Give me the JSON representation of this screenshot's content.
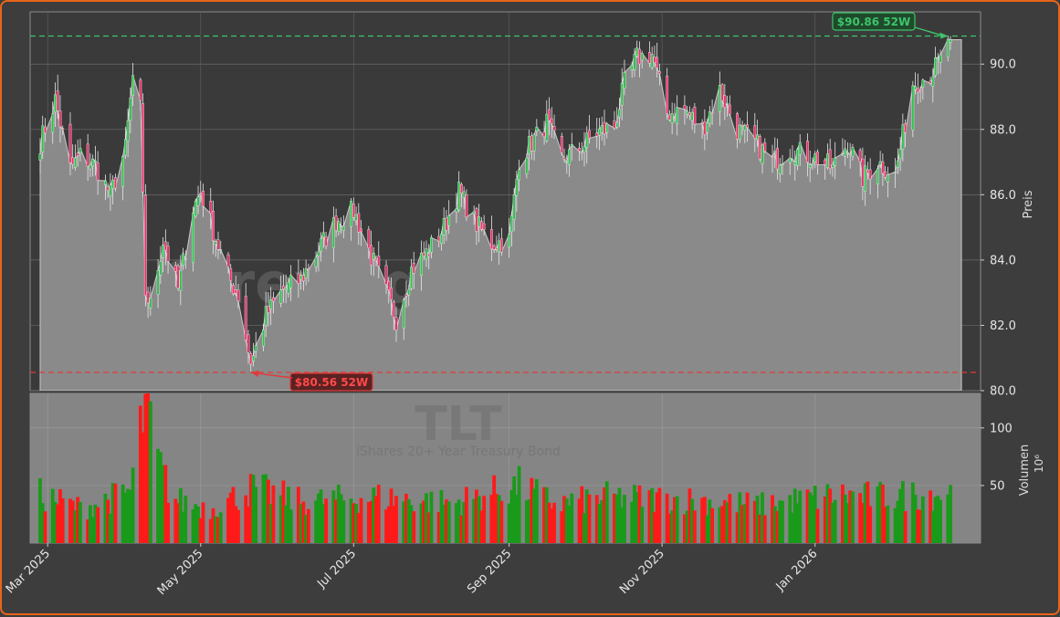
{
  "chart_data": {
    "type": "candlestick",
    "ticker": "TLT",
    "subtitle": "iShares 20+ Year Treasury Bond",
    "watermark": "forexsignale.trade",
    "ylabel": "Preis",
    "volume_label": "Volumen",
    "volume_unit": "10⁶",
    "ylim": [
      80.0,
      91.6
    ],
    "volume_ylim": [
      0,
      130
    ],
    "price_ticks": [
      "80.0",
      "82.0",
      "84.0",
      "86.0",
      "88.0",
      "90.0"
    ],
    "price_tick_values": [
      80,
      82,
      84,
      86,
      88,
      90
    ],
    "volume_ticks": [
      "50",
      "100"
    ],
    "volume_tick_values": [
      50,
      100
    ],
    "x_tick_labels": [
      "Mar 2025",
      "May 2025",
      "Jul 2025",
      "Sep 2025",
      "Nov 2025",
      "Jan 2026"
    ],
    "x_tick_dates": [
      "2025-03-01",
      "2025-05-01",
      "2025-07-01",
      "2025-09-01",
      "2025-11-01",
      "2026-01-01"
    ],
    "date_range": [
      "2025-02-26",
      "2026-02-24"
    ],
    "annotations": {
      "high": {
        "label": "$90.86 52W",
        "value": 90.86,
        "date": "2026-02-23"
      },
      "low": {
        "label": "$80.56 52W",
        "value": 80.56,
        "date": "2025-05-21"
      }
    },
    "close_anchors": [
      [
        "2025-02-26",
        87.6
      ],
      [
        "2025-03-04",
        88.9
      ],
      [
        "2025-03-10",
        86.8
      ],
      [
        "2025-03-14",
        87.2
      ],
      [
        "2025-03-20",
        86.9
      ],
      [
        "2025-03-26",
        86.0
      ],
      [
        "2025-04-01",
        87.4
      ],
      [
        "2025-04-04",
        89.6
      ],
      [
        "2025-04-07",
        88.6
      ],
      [
        "2025-04-09",
        83.0
      ],
      [
        "2025-04-11",
        82.6
      ],
      [
        "2025-04-16",
        84.6
      ],
      [
        "2025-04-22",
        83.1
      ],
      [
        "2025-04-28",
        85.6
      ],
      [
        "2025-05-01",
        86.1
      ],
      [
        "2025-05-06",
        84.9
      ],
      [
        "2025-05-12",
        83.5
      ],
      [
        "2025-05-16",
        82.9
      ],
      [
        "2025-05-21",
        80.8
      ],
      [
        "2025-05-27",
        82.3
      ],
      [
        "2025-06-03",
        83.1
      ],
      [
        "2025-06-10",
        83.4
      ],
      [
        "2025-06-16",
        84.2
      ],
      [
        "2025-06-24",
        85.2
      ],
      [
        "2025-07-01",
        85.5
      ],
      [
        "2025-07-08",
        84.1
      ],
      [
        "2025-07-15",
        82.8
      ],
      [
        "2025-07-18",
        82.2
      ],
      [
        "2025-07-24",
        83.7
      ],
      [
        "2025-07-31",
        84.3
      ],
      [
        "2025-08-06",
        85.0
      ],
      [
        "2025-08-12",
        86.1
      ],
      [
        "2025-08-18",
        85.2
      ],
      [
        "2025-08-25",
        84.5
      ],
      [
        "2025-09-01",
        84.6
      ],
      [
        "2025-09-05",
        87.1
      ],
      [
        "2025-09-10",
        87.6
      ],
      [
        "2025-09-16",
        88.2
      ],
      [
        "2025-09-22",
        87.1
      ],
      [
        "2025-09-29",
        87.4
      ],
      [
        "2025-10-06",
        87.9
      ],
      [
        "2025-10-13",
        88.1
      ],
      [
        "2025-10-17",
        89.4
      ],
      [
        "2025-10-22",
        90.2
      ],
      [
        "2025-10-28",
        90.3
      ],
      [
        "2025-11-03",
        88.5
      ],
      [
        "2025-11-10",
        88.6
      ],
      [
        "2025-11-17",
        88.0
      ],
      [
        "2025-11-24",
        89.2
      ],
      [
        "2025-12-01",
        88.0
      ],
      [
        "2025-12-08",
        87.6
      ],
      [
        "2025-12-15",
        87.0
      ],
      [
        "2025-12-22",
        87.4
      ],
      [
        "2026-01-02",
        87.1
      ],
      [
        "2026-01-08",
        86.8
      ],
      [
        "2026-01-14",
        87.6
      ],
      [
        "2026-01-20",
        86.5
      ],
      [
        "2026-01-26",
        87.0
      ],
      [
        "2026-02-02",
        86.6
      ],
      [
        "2026-02-09",
        89.4
      ],
      [
        "2026-02-16",
        89.7
      ],
      [
        "2026-02-20",
        90.1
      ],
      [
        "2026-02-23",
        90.7
      ],
      [
        "2026-02-24",
        90.5
      ]
    ],
    "volume_anchors": [
      [
        "2025-02-26",
        42
      ],
      [
        "2025-03-15",
        30
      ],
      [
        "2025-04-03",
        45
      ],
      [
        "2025-04-08",
        110
      ],
      [
        "2025-04-10",
        120
      ],
      [
        "2025-04-14",
        70
      ],
      [
        "2025-04-20",
        38
      ],
      [
        "2025-05-05",
        30
      ],
      [
        "2025-05-22",
        48
      ],
      [
        "2025-06-10",
        36
      ],
      [
        "2025-07-10",
        40
      ],
      [
        "2025-08-10",
        35
      ],
      [
        "2025-09-05",
        50
      ],
      [
        "2025-09-20",
        34
      ],
      [
        "2025-10-10",
        40
      ],
      [
        "2025-11-10",
        38
      ],
      [
        "2025-12-10",
        33
      ],
      [
        "2026-01-10",
        42
      ],
      [
        "2026-01-25",
        40
      ],
      [
        "2026-02-24",
        44
      ]
    ]
  }
}
